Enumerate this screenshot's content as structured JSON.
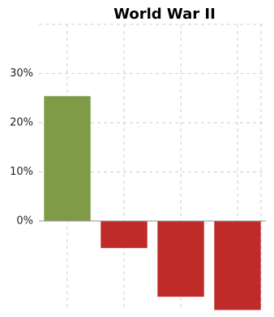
{
  "chart_data": {
    "type": "bar",
    "title": "World War II",
    "categories": [
      null,
      null,
      null,
      null
    ],
    "values": [
      25.4,
      -5.5,
      -15.4,
      -18.1
    ],
    "colors": [
      "#7f9b48",
      "#bf2b28",
      "#bf2b28",
      "#bf2b28"
    ],
    "ylim": [
      -18.2,
      40
    ],
    "yticks": [
      {
        "value": 0,
        "label": "0%"
      },
      {
        "value": 10,
        "label": "10%"
      },
      {
        "value": 20,
        "label": "20%"
      },
      {
        "value": 30,
        "label": "30%"
      }
    ],
    "grid": true
  }
}
